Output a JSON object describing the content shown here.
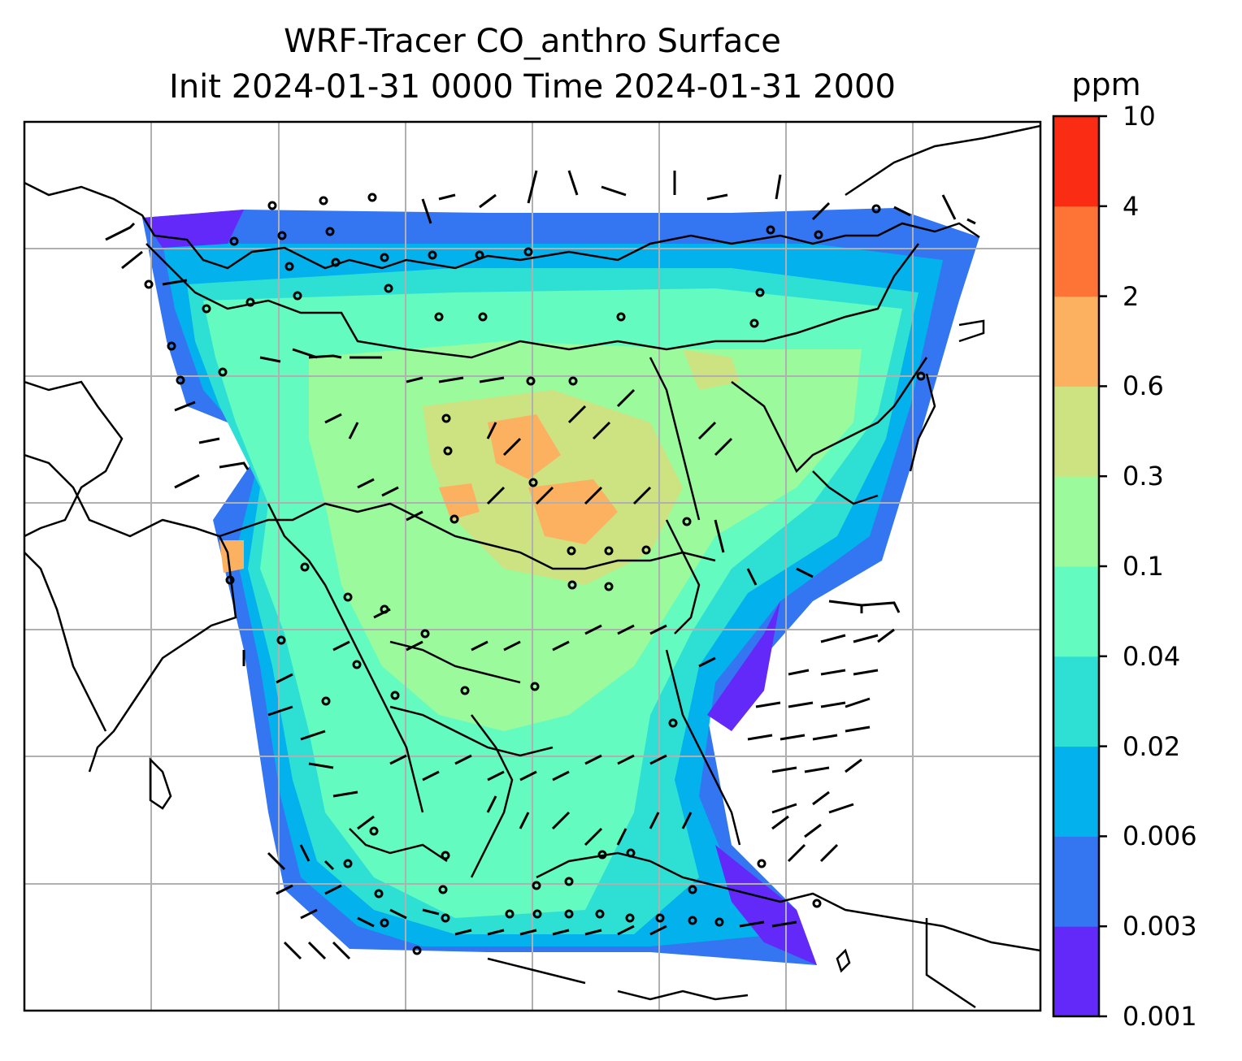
{
  "title": {
    "line1": "WRF-Tracer CO_anthro Surface",
    "line2": "Init 2024-01-31 0000 Time 2024-01-31 2000"
  },
  "colorbar": {
    "unit": "ppm",
    "levels": [
      "0.001",
      "0.003",
      "0.006",
      "0.02",
      "0.04",
      "0.1",
      "0.3",
      "0.6",
      "2",
      "4",
      "10"
    ],
    "colors": [
      "#6329f9",
      "#3476f1",
      "#03b1ec",
      "#2ee0d4",
      "#63fbbf",
      "#9afa9c",
      "#cde382",
      "#fcb161",
      "#fd7436",
      "#fb2c14"
    ]
  },
  "map": {
    "gridlines": true,
    "coastline_color": "#000000",
    "gridline_color": "#b0b0b0",
    "wind_barbs_color": "#000000"
  }
}
